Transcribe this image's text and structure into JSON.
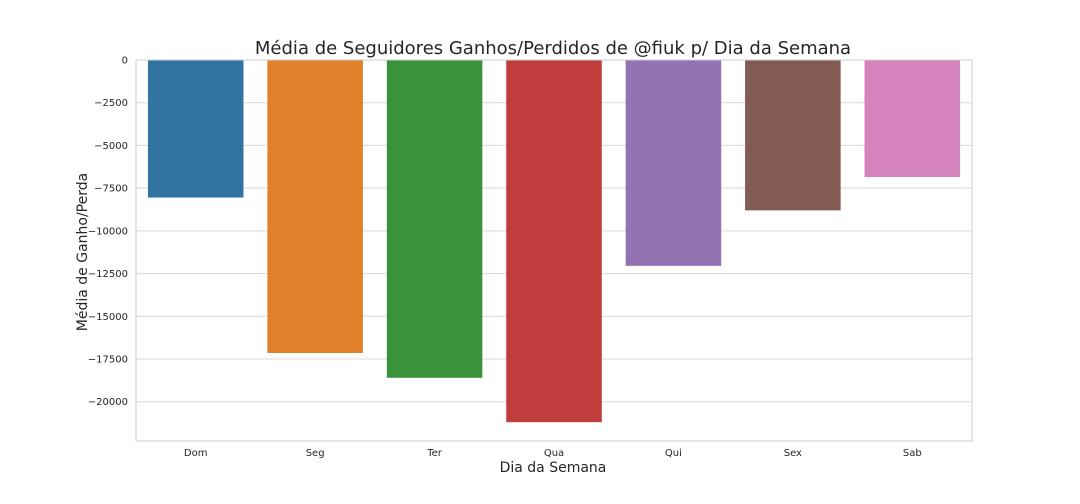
{
  "chart_data": {
    "type": "bar",
    "title": "Média de Seguidores Ganhos/Perdidos de @fiuk p/ Dia da Semana",
    "xlabel": "Dia da Semana",
    "ylabel": "Média de Ganho/Perda",
    "categories": [
      "Dom",
      "Seg",
      "Ter",
      "Qua",
      "Qui",
      "Sex",
      "Sab"
    ],
    "values": [
      -8050,
      -17150,
      -18600,
      -21200,
      -12050,
      -8800,
      -6850
    ],
    "colors": [
      "#3274a1",
      "#e1812c",
      "#3a923a",
      "#c03d3e",
      "#9372b2",
      "#845b53",
      "#d684bd"
    ],
    "ylim": [
      -22300,
      0
    ],
    "yticks": [
      0,
      -2500,
      -5000,
      -7500,
      -10000,
      -12500,
      -15000,
      -17500,
      -20000
    ],
    "ytick_labels": [
      "0",
      "−2500",
      "−5000",
      "−7500",
      "−10000",
      "−12500",
      "−15000",
      "−17500",
      "−20000"
    ],
    "grid": true,
    "legend": "none"
  }
}
